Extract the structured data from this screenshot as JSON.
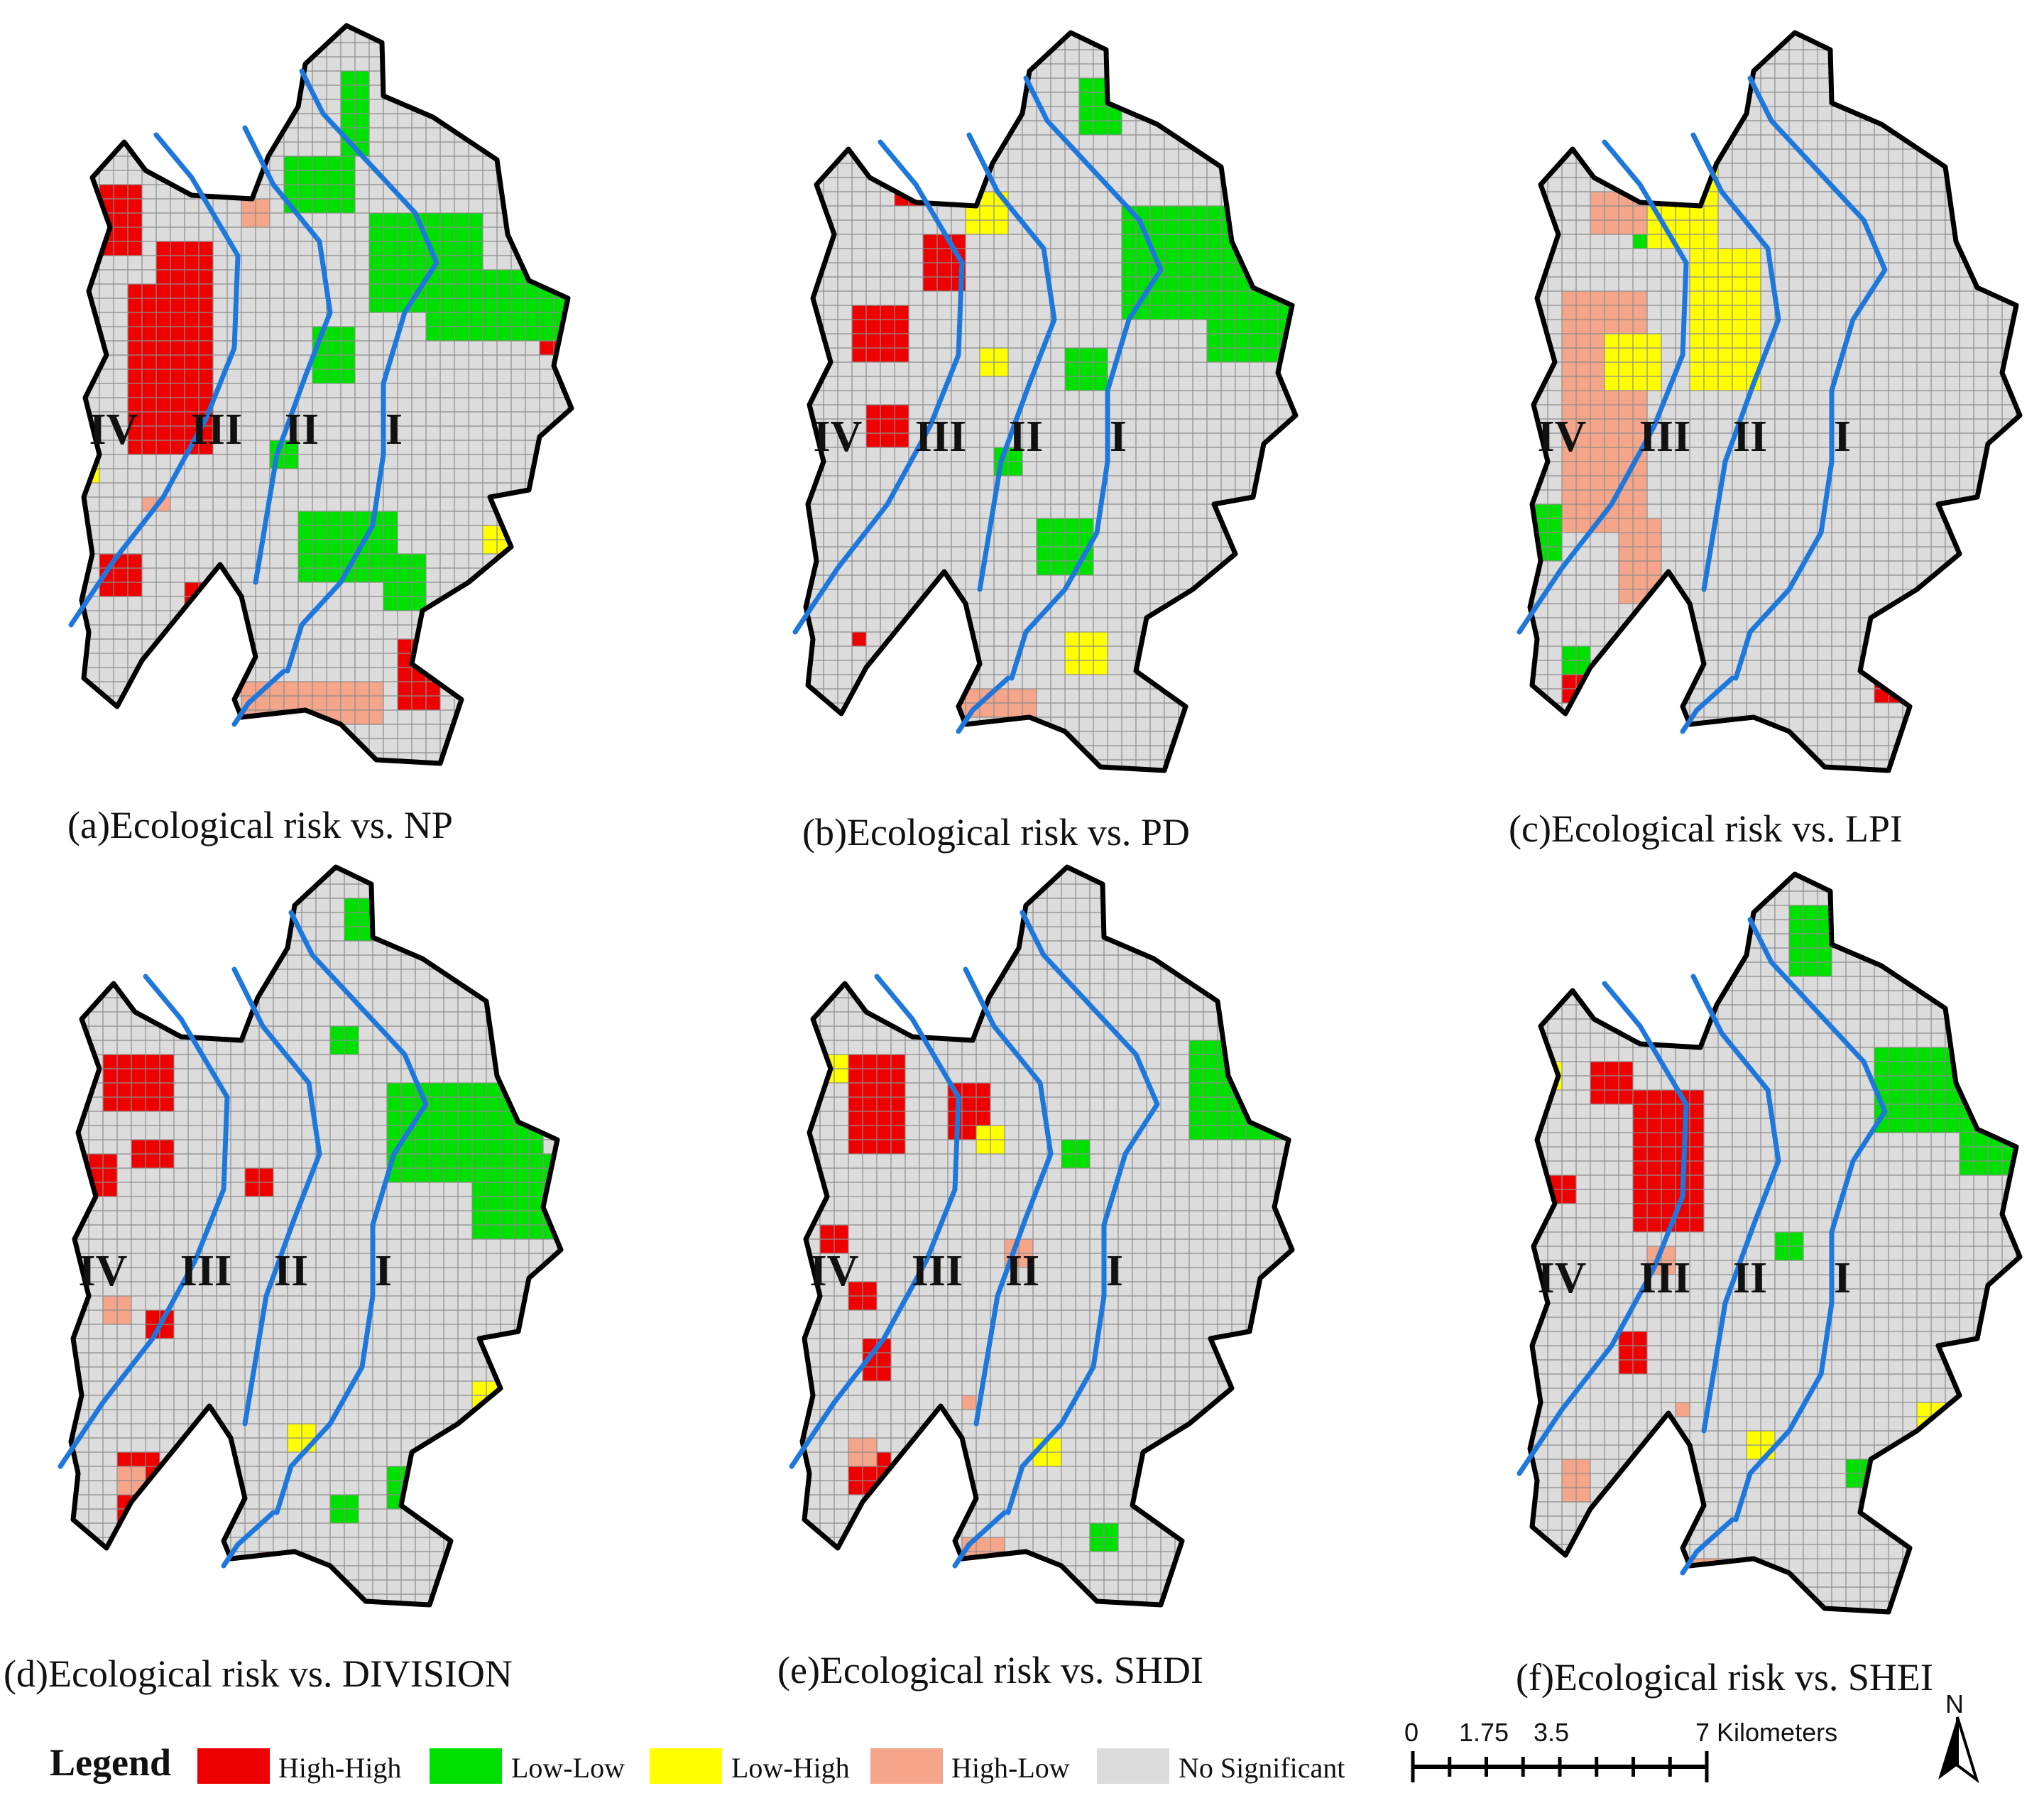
{
  "classes": [
    {
      "key": "HH",
      "label": "High-High",
      "color": "#ef0000"
    },
    {
      "key": "LL",
      "label": "Low-Low",
      "color": "#00e000"
    },
    {
      "key": "LH",
      "label": "Low-High",
      "color": "#ffff00"
    },
    {
      "key": "HL",
      "label": "High-Low",
      "color": "#f4a58a"
    },
    {
      "key": "NS",
      "label": "No Significant",
      "color": "#dcdcdc"
    }
  ],
  "zones": [
    "IV",
    "III",
    "II",
    "I"
  ],
  "panels": [
    {
      "caption": "(a)Ecological risk vs. NP"
    },
    {
      "caption": "(b)Ecological risk vs. PD"
    },
    {
      "caption": "(c)Ecological risk vs. LPI"
    },
    {
      "caption": "(d)Ecological risk vs. DIVISION"
    },
    {
      "caption": "(e)Ecological risk vs. SHDI"
    },
    {
      "caption": "(f)Ecological risk vs. SHEI"
    }
  ],
  "legend": {
    "title": "Legend"
  },
  "scale_bar": {
    "ticks": [
      "0",
      "1.75",
      "3.5",
      "7 Kilometers"
    ]
  },
  "north": "N",
  "colors": {
    "boundary": "#000000",
    "rings": "#1e78dc",
    "grid": "#8c8c8c"
  }
}
